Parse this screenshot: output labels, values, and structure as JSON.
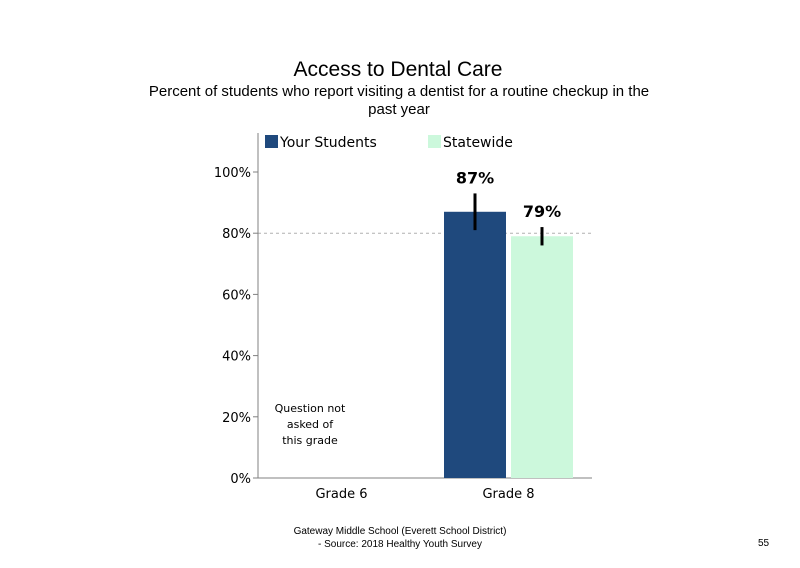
{
  "slide": {
    "title": "Access to Dental Care",
    "subtitle": "Percent of students who report visiting a dentist for a routine checkup in the past year",
    "footer_line1": "Gateway Middle School (Everett School District)",
    "footer_line2": "- Source: 2018 Healthy  Youth Survey",
    "page_number": "55"
  },
  "chart_data": {
    "type": "bar",
    "categories": [
      "Grade 6",
      "Grade 8"
    ],
    "series": [
      {
        "name": "Your Students",
        "color": "#1f497d",
        "values": [
          null,
          87
        ],
        "labels": [
          "",
          "87%"
        ],
        "error_low": [
          null,
          81
        ],
        "error_high": [
          null,
          93
        ]
      },
      {
        "name": "Statewide",
        "color": "#ccf8dc",
        "values": [
          null,
          79
        ],
        "labels": [
          "",
          "79%"
        ],
        "error_low": [
          null,
          76
        ],
        "error_high": [
          null,
          82
        ]
      }
    ],
    "ylim": [
      0,
      100
    ],
    "yticks": [
      0,
      20,
      40,
      60,
      80,
      100
    ],
    "ytick_labels": [
      "0%",
      "20%",
      "40%",
      "60%",
      "80%",
      "100%"
    ],
    "gridline_at": 80,
    "legend_position": "top",
    "annotation": "Question not\nasked of\nthis grade"
  }
}
